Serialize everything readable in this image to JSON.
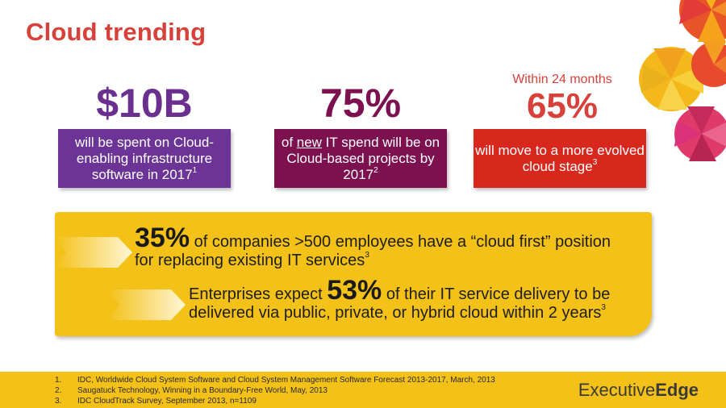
{
  "slide": {
    "title": "Cloud trending"
  },
  "stats": [
    {
      "value": "$10B",
      "kicker": "",
      "text_before_u": "will be spent on Cloud-enabling infrastructure software in 2017",
      "sup": "1",
      "color_value": "#6a2f8f",
      "color_box": "#6b3496"
    },
    {
      "value": "75%",
      "kicker": "",
      "pre": "of ",
      "underlined": "new",
      "post": " IT spend will be on Cloud-based projects by 2017",
      "sup": "2",
      "color_value": "#7d1150",
      "color_box": "#7d1150"
    },
    {
      "value": "65%",
      "kicker": "Within 24 months",
      "text": "will move to a more evolved cloud stage",
      "sup": "3",
      "color_value": "#d8403a",
      "color_box": "#d8281e"
    }
  ],
  "highlights": [
    {
      "number": "35%",
      "line1_after": " of companies >500 employees have a “cloud first” position",
      "line2": "for replacing existing IT services",
      "sup": "3"
    },
    {
      "line1_before": "Enterprises expect ",
      "number": "53%",
      "line1_after": " of their IT service delivery to be",
      "line2": "delivered via public, private, or hybrid cloud within 2 years",
      "sup": "3"
    }
  ],
  "footnotes": [
    {
      "num": "1.",
      "text": "IDC, Worldwide Cloud System Software and Cloud System Management Software Forecast 2013-2017, March, 2013"
    },
    {
      "num": "2.",
      "text": "Saugatuck Technology, Winning in a Boundary-Free World, May, 2013"
    },
    {
      "num": "3.",
      "text": "IDC CloudTrack Survey, September 2013, n=1109"
    }
  ],
  "brand": {
    "part1": "Executive",
    "part2": "Edge"
  },
  "colors": {
    "title": "#d8403a",
    "yellow": "#f3c117"
  }
}
